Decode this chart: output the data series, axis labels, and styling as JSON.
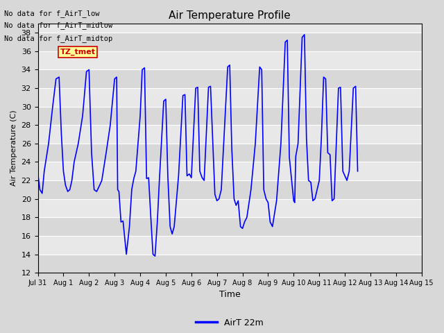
{
  "title": "Air Temperature Profile",
  "xlabel": "Time",
  "ylabel": "Air Temperature (C)",
  "ylim": [
    12,
    39
  ],
  "yticks": [
    12,
    14,
    16,
    18,
    20,
    22,
    24,
    26,
    28,
    30,
    32,
    34,
    36,
    38
  ],
  "line_color": "blue",
  "line_width": 1.2,
  "bg_color": "#d8d8d8",
  "plot_bg_color": "#e8e8e8",
  "legend_label": "AirT 22m",
  "no_data_texts": [
    "No data for f_AirT_low",
    "No data for f_AirT_midlow",
    "No data for f_AirT_midtop"
  ],
  "tz_tmet_text": "TZ_tmet",
  "x_tick_labels": [
    "Jul 31",
    "Aug 1",
    "Aug 2",
    "Aug 3",
    "Aug 4",
    "Aug 5",
    "Aug 6",
    "Aug 7",
    "Aug 8",
    "Aug 9",
    "Aug 10",
    "Aug 11",
    "Aug 12",
    "Aug 13",
    "Aug 14",
    "Aug 15"
  ],
  "temperature_data": [
    [
      0.0,
      22.8
    ],
    [
      0.08,
      21.0
    ],
    [
      0.17,
      20.6
    ],
    [
      0.25,
      23.0
    ],
    [
      0.42,
      26.0
    ],
    [
      0.58,
      30.0
    ],
    [
      0.71,
      33.0
    ],
    [
      0.83,
      33.2
    ],
    [
      0.92,
      27.0
    ],
    [
      1.0,
      23.0
    ],
    [
      1.08,
      21.5
    ],
    [
      1.17,
      20.8
    ],
    [
      1.25,
      21.0
    ],
    [
      1.33,
      22.0
    ],
    [
      1.42,
      24.0
    ],
    [
      1.58,
      26.0
    ],
    [
      1.75,
      29.0
    ],
    [
      1.9,
      33.8
    ],
    [
      2.0,
      34.0
    ],
    [
      2.1,
      25.0
    ],
    [
      2.2,
      21.0
    ],
    [
      2.3,
      20.8
    ],
    [
      2.42,
      21.5
    ],
    [
      2.5,
      22.0
    ],
    [
      2.67,
      25.0
    ],
    [
      2.83,
      28.0
    ],
    [
      3.0,
      33.0
    ],
    [
      3.08,
      33.2
    ],
    [
      3.12,
      21.0
    ],
    [
      3.17,
      20.8
    ],
    [
      3.25,
      17.5
    ],
    [
      3.33,
      17.6
    ],
    [
      3.46,
      14.0
    ],
    [
      3.58,
      17.0
    ],
    [
      3.67,
      21.0
    ],
    [
      3.75,
      22.2
    ],
    [
      3.83,
      23.0
    ],
    [
      4.0,
      29.0
    ],
    [
      4.08,
      34.0
    ],
    [
      4.17,
      34.2
    ],
    [
      4.25,
      22.2
    ],
    [
      4.33,
      22.3
    ],
    [
      4.42,
      17.8
    ],
    [
      4.5,
      14.0
    ],
    [
      4.58,
      13.8
    ],
    [
      4.67,
      17.5
    ],
    [
      4.75,
      22.0
    ],
    [
      4.92,
      30.6
    ],
    [
      5.0,
      30.8
    ],
    [
      5.08,
      22.5
    ],
    [
      5.17,
      17.0
    ],
    [
      5.25,
      16.2
    ],
    [
      5.33,
      17.0
    ],
    [
      5.5,
      22.5
    ],
    [
      5.67,
      31.2
    ],
    [
      5.75,
      31.3
    ],
    [
      5.83,
      22.5
    ],
    [
      5.92,
      22.7
    ],
    [
      6.0,
      22.3
    ],
    [
      6.17,
      32.0
    ],
    [
      6.25,
      32.1
    ],
    [
      6.33,
      23.0
    ],
    [
      6.42,
      22.3
    ],
    [
      6.5,
      22.0
    ],
    [
      6.67,
      32.1
    ],
    [
      6.75,
      32.2
    ],
    [
      6.92,
      20.5
    ],
    [
      7.0,
      19.8
    ],
    [
      7.08,
      20.0
    ],
    [
      7.17,
      21.0
    ],
    [
      7.42,
      34.3
    ],
    [
      7.5,
      34.5
    ],
    [
      7.58,
      25.5
    ],
    [
      7.67,
      20.0
    ],
    [
      7.75,
      19.3
    ],
    [
      7.83,
      19.8
    ],
    [
      7.92,
      17.0
    ],
    [
      8.0,
      16.8
    ],
    [
      8.08,
      17.5
    ],
    [
      8.17,
      18.0
    ],
    [
      8.33,
      21.0
    ],
    [
      8.5,
      26.0
    ],
    [
      8.67,
      34.3
    ],
    [
      8.75,
      34.0
    ],
    [
      8.83,
      21.0
    ],
    [
      8.92,
      20.0
    ],
    [
      9.0,
      19.6
    ],
    [
      9.08,
      17.5
    ],
    [
      9.17,
      17.0
    ],
    [
      9.33,
      19.8
    ],
    [
      9.5,
      26.0
    ],
    [
      9.67,
      37.0
    ],
    [
      9.75,
      37.2
    ],
    [
      9.83,
      24.5
    ],
    [
      9.92,
      22.0
    ],
    [
      10.0,
      19.8
    ],
    [
      10.04,
      19.6
    ],
    [
      10.08,
      24.6
    ],
    [
      10.17,
      26.0
    ],
    [
      10.33,
      37.5
    ],
    [
      10.42,
      37.8
    ],
    [
      10.5,
      26.5
    ],
    [
      10.58,
      22.0
    ],
    [
      10.67,
      21.8
    ],
    [
      10.75,
      19.8
    ],
    [
      10.83,
      20.0
    ],
    [
      11.0,
      22.0
    ],
    [
      11.08,
      26.5
    ],
    [
      11.17,
      33.2
    ],
    [
      11.25,
      33.0
    ],
    [
      11.33,
      25.0
    ],
    [
      11.42,
      24.8
    ],
    [
      11.5,
      19.8
    ],
    [
      11.58,
      20.0
    ],
    [
      11.75,
      32.0
    ],
    [
      11.83,
      32.1
    ],
    [
      11.92,
      23.0
    ],
    [
      12.0,
      22.5
    ],
    [
      12.08,
      22.0
    ],
    [
      12.17,
      23.0
    ],
    [
      12.33,
      32.0
    ],
    [
      12.42,
      32.2
    ],
    [
      12.5,
      23.0
    ]
  ]
}
